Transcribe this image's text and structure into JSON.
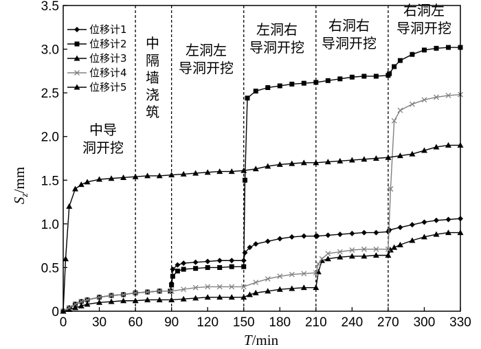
{
  "chart_data": {
    "type": "line",
    "xlabel_var": "T",
    "xlabel_unit": "/min",
    "ylabel_var": "S",
    "ylabel_sub": "z",
    "ylabel_unit": "/mm",
    "xlim": [
      0,
      330
    ],
    "ylim": [
      0,
      3.5
    ],
    "x_ticks": [
      0,
      30,
      60,
      90,
      120,
      150,
      180,
      210,
      240,
      270,
      300,
      330
    ],
    "y_ticks": [
      "0",
      "0.5",
      "1.0",
      "1.5",
      "2.0",
      "2.5",
      "3.0",
      "3.5"
    ],
    "grid": false,
    "legend_position": "top-left",
    "stage_boundaries": [
      60,
      90,
      150,
      210,
      270
    ],
    "stage_labels": [
      {
        "lines": [
          "中导",
          "洞开挖"
        ]
      },
      {
        "lines": [
          "中",
          "隔",
          "墙",
          "浇",
          "筑"
        ]
      },
      {
        "lines": [
          "左洞左",
          "导洞开挖"
        ]
      },
      {
        "lines": [
          "左洞右",
          "导洞开挖"
        ]
      },
      {
        "lines": [
          "右洞右",
          "导洞开挖"
        ]
      },
      {
        "lines": [
          "右洞左",
          "导洞开挖"
        ]
      }
    ],
    "series": [
      {
        "name": "位移计1",
        "marker": "diamond",
        "color": "#000000",
        "points": [
          [
            0,
            0
          ],
          [
            5,
            0.04
          ],
          [
            10,
            0.08
          ],
          [
            15,
            0.11
          ],
          [
            20,
            0.13
          ],
          [
            30,
            0.16
          ],
          [
            40,
            0.18
          ],
          [
            50,
            0.19
          ],
          [
            60,
            0.21
          ],
          [
            70,
            0.22
          ],
          [
            80,
            0.23
          ],
          [
            89,
            0.23
          ],
          [
            90,
            0.32
          ],
          [
            91,
            0.48
          ],
          [
            95,
            0.53
          ],
          [
            100,
            0.55
          ],
          [
            110,
            0.56
          ],
          [
            120,
            0.57
          ],
          [
            130,
            0.58
          ],
          [
            140,
            0.58
          ],
          [
            150,
            0.58
          ],
          [
            151,
            0.67
          ],
          [
            155,
            0.73
          ],
          [
            160,
            0.77
          ],
          [
            170,
            0.8
          ],
          [
            180,
            0.83
          ],
          [
            190,
            0.85
          ],
          [
            200,
            0.86
          ],
          [
            210,
            0.86
          ],
          [
            211,
            0.86
          ],
          [
            220,
            0.87
          ],
          [
            230,
            0.88
          ],
          [
            240,
            0.89
          ],
          [
            250,
            0.9
          ],
          [
            260,
            0.9
          ],
          [
            270,
            0.91
          ],
          [
            271,
            0.93
          ],
          [
            280,
            0.96
          ],
          [
            290,
            0.99
          ],
          [
            300,
            1.02
          ],
          [
            310,
            1.04
          ],
          [
            320,
            1.05
          ],
          [
            330,
            1.06
          ]
        ]
      },
      {
        "name": "位移计2",
        "marker": "square",
        "color": "#000000",
        "points": [
          [
            0,
            0
          ],
          [
            5,
            0.03
          ],
          [
            10,
            0.08
          ],
          [
            15,
            0.11
          ],
          [
            20,
            0.13
          ],
          [
            30,
            0.16
          ],
          [
            40,
            0.18
          ],
          [
            50,
            0.19
          ],
          [
            60,
            0.21
          ],
          [
            70,
            0.22
          ],
          [
            80,
            0.23
          ],
          [
            89,
            0.23
          ],
          [
            90,
            0.3
          ],
          [
            91,
            0.4
          ],
          [
            95,
            0.46
          ],
          [
            100,
            0.48
          ],
          [
            110,
            0.49
          ],
          [
            120,
            0.5
          ],
          [
            130,
            0.5
          ],
          [
            140,
            0.51
          ],
          [
            150,
            0.51
          ],
          [
            151,
            1.5
          ],
          [
            153,
            2.44
          ],
          [
            160,
            2.52
          ],
          [
            170,
            2.56
          ],
          [
            180,
            2.58
          ],
          [
            190,
            2.6
          ],
          [
            200,
            2.61
          ],
          [
            210,
            2.62
          ],
          [
            220,
            2.64
          ],
          [
            230,
            2.66
          ],
          [
            240,
            2.68
          ],
          [
            250,
            2.69
          ],
          [
            260,
            2.69
          ],
          [
            270,
            2.7
          ],
          [
            271,
            2.72
          ],
          [
            275,
            2.8
          ],
          [
            280,
            2.87
          ],
          [
            290,
            2.94
          ],
          [
            300,
            2.99
          ],
          [
            310,
            3.01
          ],
          [
            320,
            3.02
          ],
          [
            330,
            3.02
          ]
        ]
      },
      {
        "name": "位移计3",
        "marker": "triangle",
        "color": "#000000",
        "points": [
          [
            0,
            0
          ],
          [
            5,
            0.02
          ],
          [
            10,
            0.04
          ],
          [
            15,
            0.06
          ],
          [
            20,
            0.08
          ],
          [
            30,
            0.1
          ],
          [
            40,
            0.11
          ],
          [
            50,
            0.12
          ],
          [
            60,
            0.12
          ],
          [
            70,
            0.13
          ],
          [
            80,
            0.13
          ],
          [
            90,
            0.13
          ],
          [
            100,
            0.14
          ],
          [
            110,
            0.15
          ],
          [
            120,
            0.16
          ],
          [
            130,
            0.16
          ],
          [
            140,
            0.16
          ],
          [
            150,
            0.16
          ],
          [
            155,
            0.19
          ],
          [
            160,
            0.21
          ],
          [
            170,
            0.23
          ],
          [
            180,
            0.25
          ],
          [
            190,
            0.26
          ],
          [
            200,
            0.27
          ],
          [
            210,
            0.27
          ],
          [
            212,
            0.45
          ],
          [
            215,
            0.58
          ],
          [
            220,
            0.6
          ],
          [
            230,
            0.62
          ],
          [
            240,
            0.63
          ],
          [
            250,
            0.63
          ],
          [
            260,
            0.64
          ],
          [
            270,
            0.64
          ],
          [
            272,
            0.7
          ],
          [
            275,
            0.73
          ],
          [
            280,
            0.76
          ],
          [
            290,
            0.81
          ],
          [
            300,
            0.85
          ],
          [
            310,
            0.88
          ],
          [
            320,
            0.9
          ],
          [
            330,
            0.9
          ]
        ]
      },
      {
        "name": "位移计4",
        "marker": "cross",
        "color": "#808080",
        "points": [
          [
            0,
            0
          ],
          [
            5,
            0.04
          ],
          [
            10,
            0.08
          ],
          [
            15,
            0.11
          ],
          [
            20,
            0.13
          ],
          [
            30,
            0.16
          ],
          [
            40,
            0.18
          ],
          [
            50,
            0.19
          ],
          [
            60,
            0.21
          ],
          [
            70,
            0.22
          ],
          [
            80,
            0.23
          ],
          [
            90,
            0.23
          ],
          [
            100,
            0.25
          ],
          [
            110,
            0.27
          ],
          [
            120,
            0.28
          ],
          [
            130,
            0.28
          ],
          [
            140,
            0.28
          ],
          [
            150,
            0.28
          ],
          [
            160,
            0.33
          ],
          [
            170,
            0.37
          ],
          [
            180,
            0.4
          ],
          [
            190,
            0.42
          ],
          [
            200,
            0.43
          ],
          [
            210,
            0.44
          ],
          [
            212,
            0.54
          ],
          [
            215,
            0.6
          ],
          [
            220,
            0.66
          ],
          [
            230,
            0.68
          ],
          [
            240,
            0.7
          ],
          [
            250,
            0.71
          ],
          [
            260,
            0.71
          ],
          [
            270,
            0.71
          ],
          [
            272,
            1.4
          ],
          [
            275,
            2.18
          ],
          [
            280,
            2.3
          ],
          [
            290,
            2.37
          ],
          [
            300,
            2.42
          ],
          [
            310,
            2.45
          ],
          [
            320,
            2.47
          ],
          [
            330,
            2.48
          ]
        ]
      },
      {
        "name": "位移计5",
        "marker": "triangle",
        "color": "#000000",
        "points": [
          [
            0,
            0
          ],
          [
            2,
            0.6
          ],
          [
            5,
            1.2
          ],
          [
            10,
            1.4
          ],
          [
            15,
            1.45
          ],
          [
            20,
            1.48
          ],
          [
            30,
            1.51
          ],
          [
            40,
            1.52
          ],
          [
            50,
            1.53
          ],
          [
            60,
            1.54
          ],
          [
            70,
            1.55
          ],
          [
            80,
            1.55
          ],
          [
            90,
            1.56
          ],
          [
            100,
            1.57
          ],
          [
            110,
            1.58
          ],
          [
            120,
            1.59
          ],
          [
            130,
            1.6
          ],
          [
            140,
            1.6
          ],
          [
            150,
            1.61
          ],
          [
            160,
            1.63
          ],
          [
            170,
            1.66
          ],
          [
            180,
            1.68
          ],
          [
            190,
            1.69
          ],
          [
            200,
            1.7
          ],
          [
            210,
            1.7
          ],
          [
            220,
            1.71
          ],
          [
            230,
            1.72
          ],
          [
            240,
            1.73
          ],
          [
            250,
            1.74
          ],
          [
            260,
            1.75
          ],
          [
            270,
            1.76
          ],
          [
            280,
            1.78
          ],
          [
            290,
            1.8
          ],
          [
            300,
            1.84
          ],
          [
            310,
            1.88
          ],
          [
            320,
            1.9
          ],
          [
            330,
            1.9
          ]
        ]
      }
    ]
  }
}
